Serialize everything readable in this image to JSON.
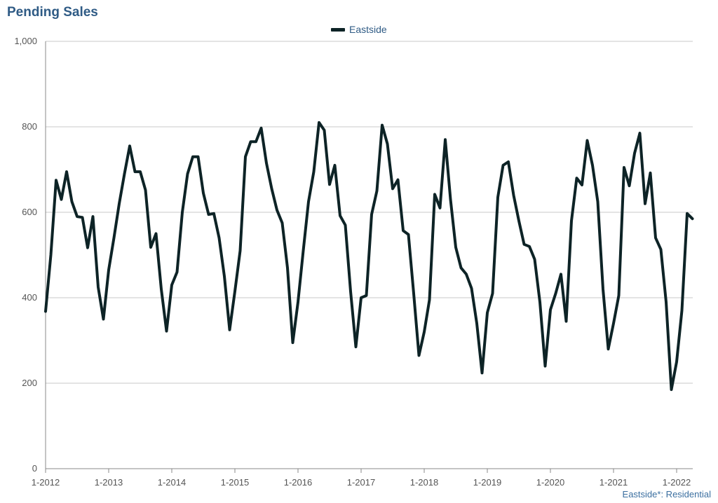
{
  "title": "Pending Sales",
  "footer_note": "Eastside*: Residential",
  "colors": {
    "line": "#0d2326",
    "grid": "#c8c8c8",
    "title": "#2f5b85"
  },
  "chart_data": {
    "type": "line",
    "title": "Pending Sales",
    "xlabel": "",
    "ylabel": "",
    "ylim": [
      0,
      1000
    ],
    "yticks": [
      0,
      200,
      400,
      600,
      800,
      1000
    ],
    "ytick_labels": [
      "0",
      "200",
      "400",
      "600",
      "800",
      "1,000"
    ],
    "xtick_labels": [
      "1-2012",
      "1-2013",
      "1-2014",
      "1-2015",
      "1-2016",
      "1-2017",
      "1-2018",
      "1-2019",
      "1-2020",
      "1-2021",
      "1-2022"
    ],
    "grid": true,
    "legend_position": "top-center",
    "x_start": "1-2012",
    "x_end": "4-2022",
    "series": [
      {
        "name": "Eastside",
        "values": [
          368,
          500,
          675,
          630,
          695,
          625,
          590,
          588,
          517,
          590,
          425,
          350,
          465,
          540,
          620,
          690,
          755,
          695,
          695,
          652,
          518,
          550,
          420,
          322,
          430,
          460,
          600,
          690,
          730,
          730,
          645,
          595,
          597,
          540,
          450,
          325,
          415,
          510,
          730,
          765,
          765,
          797,
          715,
          655,
          605,
          575,
          470,
          295,
          390,
          510,
          625,
          695,
          810,
          792,
          665,
          710,
          592,
          570,
          415,
          285,
          400,
          405,
          595,
          650,
          804,
          760,
          655,
          676,
          557,
          548,
          410,
          265,
          320,
          395,
          642,
          610,
          770,
          630,
          518,
          470,
          455,
          422,
          340,
          224,
          365,
          410,
          635,
          710,
          718,
          640,
          580,
          525,
          520,
          490,
          390,
          240,
          372,
          410,
          455,
          345,
          580,
          680,
          664,
          768,
          710,
          625,
          420,
          280,
          340,
          405,
          705,
          662,
          738,
          785,
          620,
          692,
          540,
          513,
          390,
          185,
          250,
          370,
          597,
          585
        ]
      }
    ]
  }
}
